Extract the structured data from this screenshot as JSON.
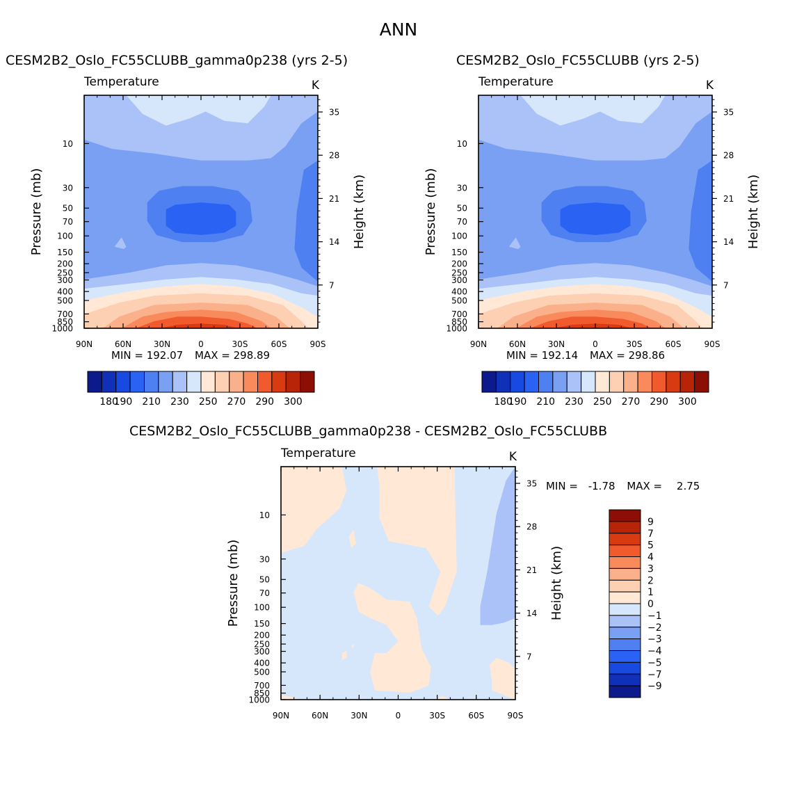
{
  "main_title": "ANN",
  "panels": [
    {
      "title": "CESM2B2_Oslo_FC55CLUBB_gamma0p238 (yrs 2-5)",
      "left_label": "Temperature",
      "right_label": "K",
      "min_label": "MIN =",
      "min_value": "192.07",
      "max_label": "MAX =",
      "max_value": "298.89"
    },
    {
      "title": "CESM2B2_Oslo_FC55CLUBB (yrs 2-5)",
      "left_label": "Temperature",
      "right_label": "K",
      "min_label": "MIN =",
      "min_value": "192.14",
      "max_label": "MAX =",
      "max_value": "298.86"
    },
    {
      "title": "CESM2B2_Oslo_FC55CLUBB_gamma0p238 - CESM2B2_Oslo_FC55CLUBB",
      "left_label": "Temperature",
      "right_label": "K",
      "min_label": "MIN =",
      "min_value": "-1.78",
      "max_label": "MAX =",
      "max_value": "2.75"
    }
  ],
  "chart_data": [
    {
      "type": "heatmap",
      "title": "CESM2B2_Oslo_FC55CLUBB_gamma0p238 (yrs 2-5)",
      "variable": "Temperature",
      "units": "K",
      "xlabel": "",
      "ylabel": "Pressure (mb)",
      "y2label": "Height (km)",
      "x_ticks": [
        "90N",
        "60N",
        "30N",
        "0",
        "30S",
        "60S",
        "90S"
      ],
      "y_ticks": [
        10,
        30,
        50,
        70,
        100,
        150,
        200,
        250,
        300,
        400,
        500,
        700,
        850,
        1000
      ],
      "y2_ticks": [
        7,
        14,
        21,
        28,
        35
      ],
      "y_log": true,
      "y_reversed": true,
      "ylim": [
        1000,
        3
      ],
      "min": 192.07,
      "max": 298.89,
      "colorbar_ticks": [
        180,
        190,
        210,
        230,
        250,
        270,
        290,
        300
      ]
    },
    {
      "type": "heatmap",
      "title": "CESM2B2_Oslo_FC55CLUBB (yrs 2-5)",
      "variable": "Temperature",
      "units": "K",
      "xlabel": "",
      "ylabel": "Pressure (mb)",
      "y2label": "Height (km)",
      "x_ticks": [
        "90N",
        "60N",
        "30N",
        "0",
        "30S",
        "60S",
        "90S"
      ],
      "y_ticks": [
        10,
        30,
        50,
        70,
        100,
        150,
        200,
        250,
        300,
        400,
        500,
        700,
        850,
        1000
      ],
      "y2_ticks": [
        7,
        14,
        21,
        28,
        35
      ],
      "y_log": true,
      "y_reversed": true,
      "ylim": [
        1000,
        3
      ],
      "min": 192.14,
      "max": 298.86,
      "colorbar_ticks": [
        180,
        190,
        210,
        230,
        250,
        270,
        290,
        300
      ]
    },
    {
      "type": "heatmap",
      "title": "CESM2B2_Oslo_FC55CLUBB_gamma0p238 - CESM2B2_Oslo_FC55CLUBB",
      "variable": "Temperature",
      "units": "K",
      "xlabel": "",
      "ylabel": "Pressure (mb)",
      "y2label": "Height (km)",
      "x_ticks": [
        "90N",
        "60N",
        "30N",
        "0",
        "30S",
        "60S",
        "90S"
      ],
      "y_ticks": [
        10,
        30,
        50,
        70,
        100,
        150,
        200,
        250,
        300,
        400,
        500,
        700,
        850,
        1000
      ],
      "y2_ticks": [
        7,
        14,
        21,
        28,
        35
      ],
      "y_log": true,
      "y_reversed": true,
      "ylim": [
        1000,
        3
      ],
      "min": -1.78,
      "max": 2.75,
      "colorbar_ticks": [
        9,
        7,
        5,
        4,
        3,
        2,
        1,
        0,
        -1,
        -2,
        -3,
        -4,
        -5,
        -7,
        -9
      ]
    }
  ],
  "colors": {
    "abs_colorbar": [
      "#0c1a8c",
      "#1130b8",
      "#1849e0",
      "#2a62f4",
      "#4e80f2",
      "#7aa0f4",
      "#aac2f7",
      "#d6e6fb",
      "#ffe9d6",
      "#fdcfb3",
      "#fbb08c",
      "#f98a5c",
      "#f05a2c",
      "#d83a12",
      "#b82408",
      "#8c0f05"
    ],
    "diff_colorbar": [
      "#8c0f05",
      "#b82408",
      "#d83a12",
      "#f05a2c",
      "#f98a5c",
      "#fbb08c",
      "#fdcfb3",
      "#ffe9d6",
      "#d6e6fb",
      "#aac2f7",
      "#7aa0f4",
      "#4e80f2",
      "#2a62f4",
      "#1849e0",
      "#1130b8",
      "#0c1a8c"
    ]
  },
  "axis_labels": {
    "pressure": "Pressure (mb)",
    "height": "Height (km)"
  }
}
